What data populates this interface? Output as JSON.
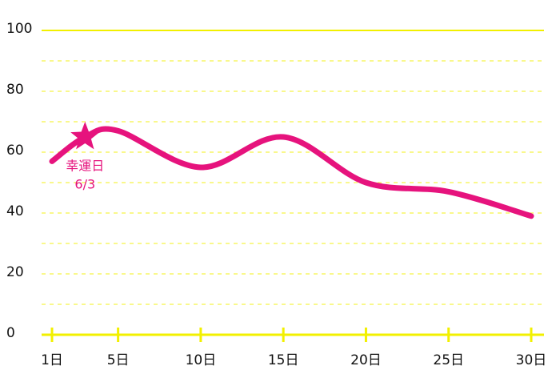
{
  "chart_data": {
    "type": "line",
    "x": [
      1,
      3,
      5,
      10,
      15,
      20,
      25,
      30
    ],
    "series": [
      {
        "color": "#e6137d",
        "values": [
          57,
          65,
          67,
          55,
          65,
          50,
          47,
          39
        ]
      }
    ],
    "highlight": {
      "index": 1,
      "label": "幸運日",
      "date": "6/3",
      "color": "#e6137d"
    },
    "xlim": [
      1,
      30
    ],
    "xticks": [
      {
        "value": 1,
        "label": "1日"
      },
      {
        "value": 5,
        "label": "5日"
      },
      {
        "value": 10,
        "label": "10日"
      },
      {
        "value": 15,
        "label": "15日"
      },
      {
        "value": 20,
        "label": "20日"
      },
      {
        "value": 25,
        "label": "25日"
      },
      {
        "value": 30,
        "label": "30日"
      }
    ],
    "ylim": [
      0,
      100
    ],
    "yticks": [
      0,
      20,
      40,
      60,
      80,
      100
    ],
    "yminorticks": [
      10,
      30,
      50,
      70,
      90
    ],
    "grid": true,
    "grid_color": "#f2f000"
  }
}
